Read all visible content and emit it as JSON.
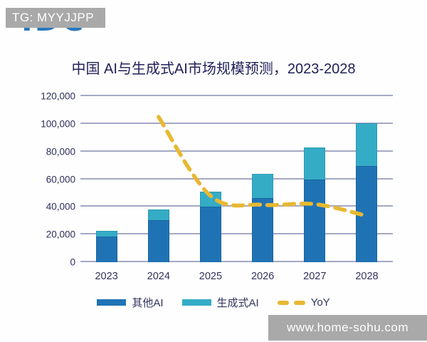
{
  "watermark_top": {
    "text": "TG: MYYJJPP",
    "bg_color": "#a9a9a9"
  },
  "logo": {
    "text": "IDC",
    "color": "#2878be",
    "note": "only bottom of letters visible under watermark"
  },
  "watermark_bottom": {
    "text": "www.home-sohu.com",
    "bg_color": "#a9a9a9"
  },
  "colors": {
    "bar_other_ai": "#1f73b5",
    "bar_gen_ai": "#35acc6",
    "yoy_line": "#e8b832",
    "gridline": "#a5a8c4",
    "title_text": "#21215a",
    "axis_text": "#2e2e5c"
  },
  "chart_data": {
    "type": "bar",
    "subtype": "stacked-bar-with-dashed-line",
    "title": "中国 AI与生成式AI市场规模预测，2023-2028",
    "categories": [
      "2023",
      "2024",
      "2025",
      "2026",
      "2027",
      "2028"
    ],
    "series": [
      {
        "name": "其他AI",
        "type": "bar",
        "color": "#1f73b5",
        "values": [
          18500,
          30500,
          40000,
          46500,
          59500,
          69500
        ]
      },
      {
        "name": "生成式AI",
        "type": "bar",
        "color": "#35acc6",
        "values": [
          4000,
          7500,
          11000,
          17500,
          23500,
          31000
        ]
      },
      {
        "name": "YoY",
        "type": "line",
        "style": "dashed",
        "color": "#e8b832",
        "x": [
          "2024",
          "2025",
          "2026",
          "2027",
          "2028"
        ],
        "values": [
          105000,
          48000,
          41500,
          42000,
          33500
        ],
        "note": "dashed yellow line; no secondary axis shown, values estimated against left axis"
      }
    ],
    "stacked_totals": [
      22500,
      38000,
      51000,
      64000,
      83000,
      100500
    ],
    "xlabel": "",
    "ylabel": "",
    "ylim": [
      0,
      120000
    ],
    "yticks": [
      0,
      20000,
      40000,
      60000,
      80000,
      100000,
      120000
    ],
    "ytick_labels": [
      "0",
      "20,000",
      "40,000",
      "60,000",
      "80,000",
      "100,000",
      "120,000"
    ],
    "grid": "horizontal",
    "legend_position": "bottom"
  }
}
